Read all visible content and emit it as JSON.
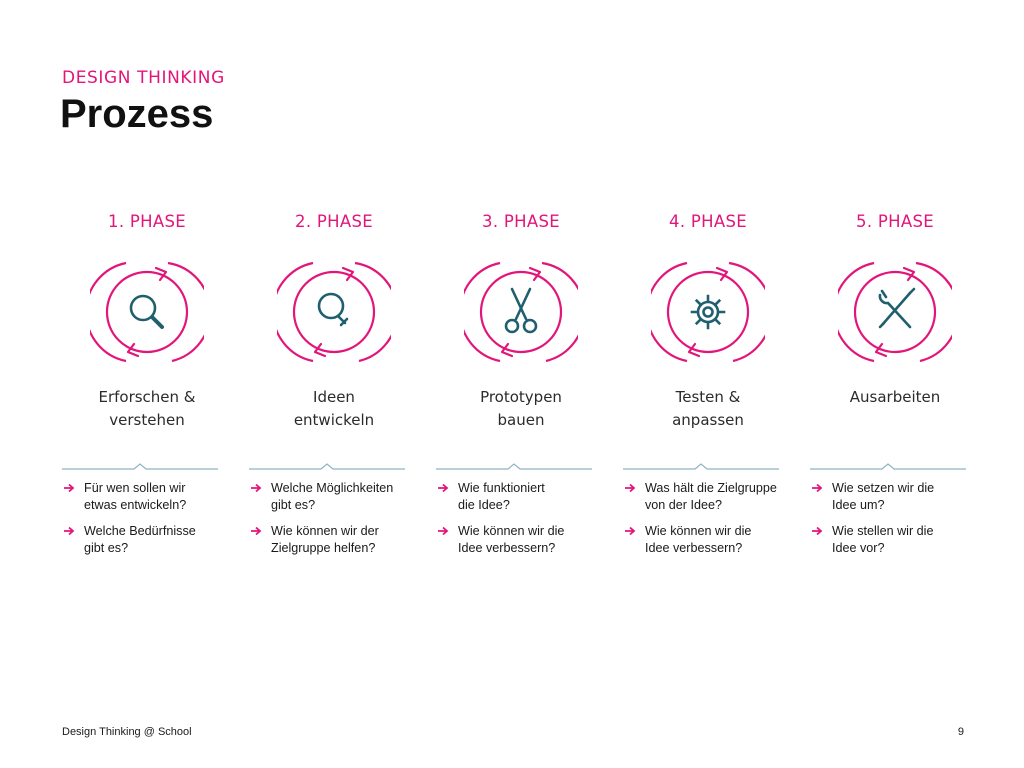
{
  "header": {
    "kicker": "DESIGN THINKING",
    "title": "Prozess"
  },
  "colors": {
    "accent": "#e2157a",
    "icon": "#1f5f6e",
    "divider": "#8fb3c2"
  },
  "phases": [
    {
      "label": "1. PHASE",
      "icon": "search-icon",
      "name_lines": [
        "Erforschen &",
        "verstehen"
      ],
      "questions": [
        [
          "Für wen sollen wir",
          "etwas entwickeln?"
        ],
        [
          "Welche Bedürfnisse",
          "gibt es?"
        ]
      ]
    },
    {
      "label": "2. PHASE",
      "icon": "lightbulb-icon",
      "name_lines": [
        "Ideen",
        "entwickeln"
      ],
      "questions": [
        [
          "Welche Möglichkeiten",
          "gibt es?"
        ],
        [
          "Wie können wir der",
          "Zielgruppe helfen?"
        ]
      ]
    },
    {
      "label": "3. PHASE",
      "icon": "scissors-icon",
      "name_lines": [
        "Prototypen",
        "bauen"
      ],
      "questions": [
        [
          "Wie funktioniert",
          "die Idee?"
        ],
        [
          "Wie können wir die",
          "Idee verbessern?"
        ]
      ]
    },
    {
      "label": "4. PHASE",
      "icon": "gear-icon",
      "name_lines": [
        "Testen &",
        "anpassen"
      ],
      "questions": [
        [
          "Was hält die Zielgruppe",
          "von der Idee?"
        ],
        [
          "Wie können wir die",
          "Idee verbessern?"
        ]
      ]
    },
    {
      "label": "5. PHASE",
      "icon": "tools-icon",
      "name_lines": [
        "Ausarbeiten",
        ""
      ],
      "questions": [
        [
          "Wie setzen wir die",
          "Idee um?"
        ],
        [
          "Wie stellen wir die",
          "Idee vor?"
        ]
      ]
    }
  ],
  "footer": {
    "left": "Design Thinking @ School",
    "page_number": "9"
  }
}
